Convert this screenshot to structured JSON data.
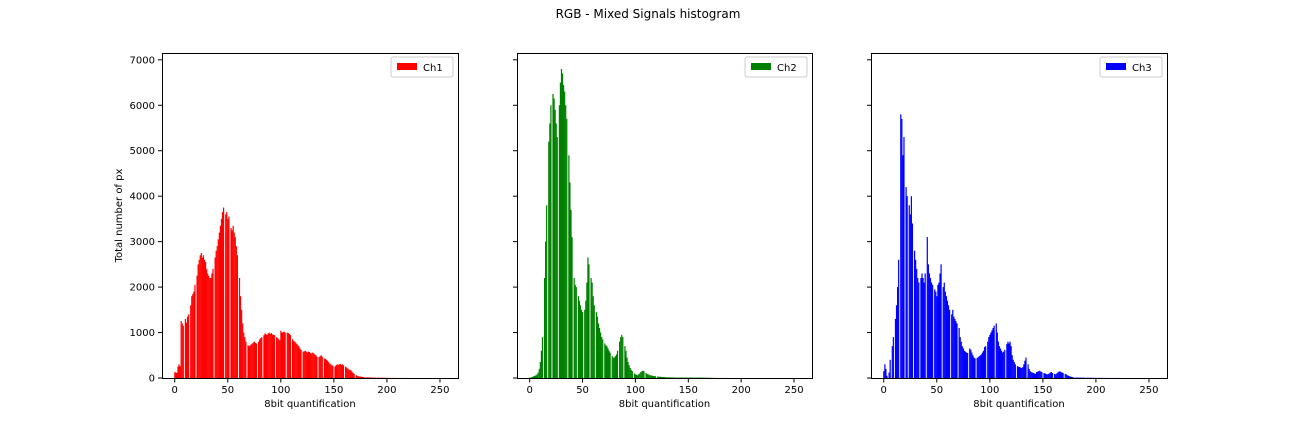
{
  "figure": {
    "title": "RGB - Mixed Signals histogram"
  },
  "chart_data": [
    {
      "type": "bar",
      "legend": {
        "label": "Ch1",
        "placement": "top-right"
      },
      "color": "#ff0000",
      "xlabel": "8bit quantification",
      "ylabel": "Total number of px",
      "xlim": [
        -12,
        267
      ],
      "ylim": [
        0,
        7150
      ],
      "xticks": [
        0,
        50,
        100,
        150,
        200,
        250
      ],
      "yticks": [
        0,
        1000,
        2000,
        3000,
        4000,
        5000,
        6000,
        7000
      ],
      "show_y_tick_labels": true,
      "grid": false,
      "x_start": 0,
      "values": [
        130,
        120,
        110,
        250,
        300,
        260,
        1250,
        1200,
        1150,
        1280,
        1300,
        1220,
        1350,
        1400,
        1450,
        1600,
        1800,
        1850,
        1900,
        2050,
        2150,
        2250,
        2500,
        2600,
        2700,
        2750,
        2650,
        2700,
        2600,
        2550,
        2400,
        2300,
        2250,
        2200,
        2200,
        2300,
        2400,
        2500,
        2650,
        2800,
        2900,
        3050,
        3200,
        3350,
        3500,
        3650,
        3750,
        3700,
        3600,
        3650,
        3500,
        3550,
        3450,
        3300,
        3250,
        3350,
        3200,
        3100,
        2900,
        2700,
        2500,
        2200,
        1800,
        1500,
        1200,
        1000,
        900,
        800,
        740,
        720,
        700,
        720,
        740,
        760,
        780,
        800,
        770,
        760,
        780,
        800,
        850,
        880,
        900,
        920,
        940,
        980,
        960,
        950,
        980,
        1000,
        970,
        990,
        960,
        950,
        940,
        920,
        900,
        880,
        850,
        830,
        1040,
        1000,
        1010,
        1020,
        1000,
        980,
        1000,
        990,
        970,
        950,
        900,
        850,
        820,
        800,
        780,
        750,
        720,
        700,
        650,
        620,
        600,
        580,
        590,
        600,
        580,
        560,
        580,
        570,
        550,
        540,
        560,
        540,
        520,
        500,
        470,
        450,
        460,
        480,
        500,
        470,
        450,
        430,
        420,
        400,
        380,
        350,
        320,
        300,
        280,
        270,
        260,
        250,
        280,
        300,
        290,
        300,
        310,
        290,
        300,
        280,
        270,
        250,
        230,
        210,
        190,
        180,
        170,
        140,
        110,
        90,
        70,
        60,
        50,
        40,
        35,
        30,
        25,
        22,
        20,
        18,
        16,
        15,
        14,
        13,
        12,
        11,
        10,
        10,
        9,
        9,
        8,
        8,
        7,
        7,
        6,
        6,
        5,
        5,
        5,
        4,
        4,
        3,
        3,
        2,
        2,
        2,
        2,
        2,
        1,
        1,
        1,
        1,
        1,
        1,
        1,
        1,
        1,
        1,
        1,
        0,
        0,
        0,
        0,
        0,
        0,
        0,
        0,
        0,
        0,
        0,
        0,
        0,
        0,
        0,
        0,
        0,
        0,
        0,
        0,
        0,
        0,
        0,
        0,
        0,
        0,
        0,
        0,
        0,
        0,
        0,
        0,
        0,
        0,
        0,
        0,
        0,
        0,
        0,
        0,
        0,
        0,
        0,
        0,
        0,
        0,
        0,
        0,
        0,
        0,
        0,
        0,
        0
      ],
      "gaps": [
        9,
        14,
        20,
        37,
        47,
        52,
        60,
        68,
        78,
        83,
        95,
        105,
        110,
        120,
        135,
        140,
        150,
        160,
        170,
        180,
        190
      ]
    },
    {
      "type": "bar",
      "legend": {
        "label": "Ch2",
        "placement": "top-right"
      },
      "color": "#008000",
      "xlabel": "8bit quantification",
      "ylabel": "",
      "xlim": [
        -12,
        267
      ],
      "ylim": [
        0,
        7150
      ],
      "xticks": [
        0,
        50,
        100,
        150,
        200,
        250
      ],
      "yticks": [
        0,
        1000,
        2000,
        3000,
        4000,
        5000,
        6000,
        7000
      ],
      "show_y_tick_labels": false,
      "grid": false,
      "x_start": 0,
      "values": [
        10,
        10,
        20,
        30,
        40,
        50,
        60,
        80,
        120,
        200,
        350,
        600,
        900,
        1500,
        2200,
        3000,
        3800,
        4600,
        5200,
        5600,
        6000,
        6350,
        6250,
        6150,
        5900,
        5600,
        5300,
        5000,
        6000,
        6500,
        6800,
        6700,
        6450,
        6300,
        6000,
        5700,
        5300,
        4900,
        4300,
        3700,
        3100,
        2500,
        2200,
        2050,
        2000,
        1950,
        1800,
        1700,
        1600,
        1500,
        1450,
        1400,
        1500,
        1700,
        2100,
        2650,
        2500,
        2400,
        2200,
        2100,
        1800,
        1600,
        1550,
        1450,
        1350,
        1200,
        1100,
        1000,
        900,
        850,
        800,
        760,
        720,
        700,
        650,
        600,
        560,
        520,
        480,
        450,
        450,
        480,
        520,
        600,
        700,
        800,
        900,
        950,
        900,
        800,
        700,
        600,
        450,
        350,
        280,
        220,
        180,
        150,
        120,
        100,
        80,
        70,
        60,
        80,
        100,
        130,
        150,
        160,
        150,
        130,
        110,
        90,
        80,
        70,
        60,
        55,
        50,
        45,
        40,
        38,
        35,
        33,
        30,
        28,
        26,
        24,
        22,
        20,
        18,
        16,
        15,
        15,
        14,
        14,
        13,
        12,
        12,
        11,
        11,
        10,
        10,
        10,
        10,
        10,
        10,
        10,
        10,
        10,
        10,
        10,
        10,
        10,
        10,
        10,
        10,
        10,
        10,
        10,
        10,
        10,
        10,
        9,
        9,
        8,
        8,
        7,
        7,
        6,
        6,
        5,
        5,
        4,
        4,
        3,
        3,
        2,
        2,
        1,
        1,
        1,
        1,
        1,
        1,
        1,
        1,
        1,
        1,
        0,
        0,
        0,
        0,
        0,
        0,
        0,
        0,
        0,
        0,
        0,
        0,
        0,
        0,
        0,
        0,
        0,
        0,
        0,
        0,
        0,
        0,
        0,
        0,
        0,
        0,
        0,
        0,
        0,
        0,
        0,
        0,
        0,
        0,
        0,
        0,
        0,
        0,
        0,
        0,
        0,
        0,
        0,
        0,
        0,
        0,
        0,
        0,
        0,
        0,
        0,
        0,
        0,
        0,
        0,
        0,
        0,
        0,
        0,
        0,
        0,
        0,
        0,
        0,
        0,
        0,
        0,
        0,
        0,
        0,
        0,
        0,
        0,
        0,
        0,
        0,
        0,
        0,
        0,
        0,
        0
      ],
      "gaps": [
        13,
        17,
        21,
        27,
        36,
        41,
        45,
        51,
        57,
        62,
        70,
        77,
        84,
        89,
        98,
        109,
        120
      ]
    },
    {
      "type": "bar",
      "legend": {
        "label": "Ch3",
        "placement": "top-right"
      },
      "color": "#0000ff",
      "xlabel": "8bit quantification",
      "ylabel": "",
      "xlim": [
        -12,
        267
      ],
      "ylim": [
        0,
        7150
      ],
      "xticks": [
        0,
        50,
        100,
        150,
        200,
        250
      ],
      "yticks": [
        0,
        1000,
        2000,
        3000,
        4000,
        5000,
        6000,
        7000
      ],
      "show_y_tick_labels": false,
      "grid": false,
      "x_start": 0,
      "values": [
        150,
        300,
        200,
        50,
        80,
        120,
        400,
        500,
        700,
        900,
        1100,
        1300,
        1600,
        2000,
        2600,
        3200,
        5800,
        5700,
        4900,
        5300,
        4500,
        4200,
        4000,
        4600,
        3800,
        3600,
        4000,
        3400,
        3000,
        2800,
        2600,
        2400,
        2200,
        2100,
        2000,
        2200,
        2300,
        2200,
        2100,
        2300,
        2200,
        3100,
        2500,
        2300,
        2200,
        2100,
        2050,
        2000,
        1950,
        1900,
        1800,
        2050,
        2100,
        2300,
        2500,
        2200,
        2000,
        2100,
        1900,
        1800,
        1700,
        1600,
        1500,
        1450,
        1400,
        1500,
        1350,
        1300,
        1250,
        1200,
        1150,
        1100,
        900,
        800,
        700,
        650,
        600,
        580,
        560,
        550,
        540,
        650,
        620,
        560,
        500,
        450,
        430,
        420,
        440,
        460,
        480,
        500,
        520,
        560,
        600,
        680,
        700,
        760,
        800,
        900,
        950,
        1000,
        1050,
        1100,
        1150,
        1400,
        1200,
        1000,
        800,
        700,
        650,
        600,
        560,
        580,
        620,
        700,
        750,
        800,
        760,
        800,
        700,
        500,
        400,
        350,
        300,
        280,
        260,
        250,
        240,
        230,
        220,
        240,
        300,
        380,
        450,
        500,
        300,
        200,
        150,
        130,
        120,
        110,
        100,
        90,
        130,
        140,
        150,
        160,
        140,
        130,
        120,
        110,
        100,
        90,
        80,
        90,
        100,
        120,
        130,
        110,
        100,
        90,
        80,
        100,
        120,
        140,
        150,
        130,
        120,
        110,
        100,
        90,
        80,
        60,
        50,
        40,
        30,
        25,
        20,
        15,
        12,
        10,
        10,
        10,
        9,
        9,
        8,
        8,
        8,
        7,
        7,
        6,
        6,
        5,
        5,
        5,
        5,
        4,
        4,
        4,
        3,
        3,
        3,
        3,
        3,
        2,
        2,
        2,
        2,
        2,
        2,
        1,
        1,
        1,
        1,
        1,
        1,
        1,
        1,
        1,
        1,
        1,
        1,
        0,
        0,
        0,
        0,
        0,
        0,
        0,
        0,
        0,
        0,
        0,
        0,
        0,
        0,
        0,
        0,
        0,
        0,
        0,
        0,
        0,
        0,
        0,
        0,
        0,
        0,
        0,
        0,
        0,
        0,
        0,
        0,
        0,
        0,
        0,
        0
      ],
      "gaps": [
        4,
        7,
        10,
        15,
        20,
        23,
        28,
        34,
        40,
        47,
        55,
        63,
        70,
        80,
        87,
        97,
        105,
        115,
        125,
        135,
        150,
        160,
        170,
        180,
        190
      ]
    }
  ]
}
